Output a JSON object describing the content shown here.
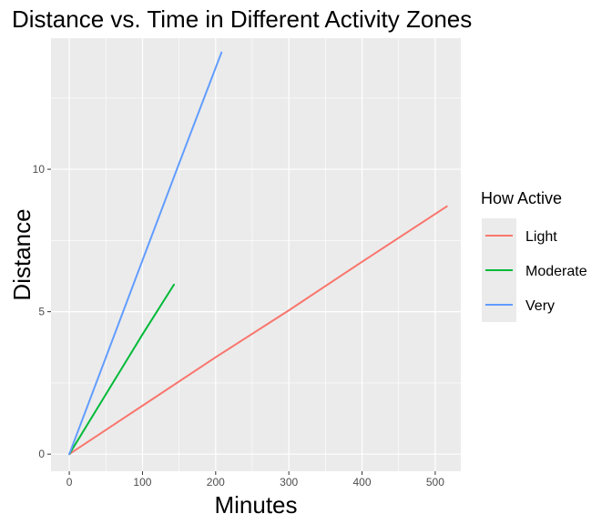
{
  "chart_data": {
    "type": "line",
    "title": "Distance vs. Time in Different Activity Zones",
    "xlabel": "Minutes",
    "ylabel": "Distance",
    "xlim": [
      -25,
      535
    ],
    "ylim": [
      -0.6,
      14.6
    ],
    "x_ticks": [
      0,
      100,
      200,
      300,
      400,
      500
    ],
    "y_ticks": [
      0,
      5,
      10
    ],
    "grid": true,
    "legend": {
      "title": "How Active",
      "position": "right"
    },
    "series": [
      {
        "name": "Light",
        "color": "#F8766D",
        "x": [
          0,
          100,
          200,
          300,
          400,
          516
        ],
        "y": [
          0,
          1.7,
          3.4,
          5.05,
          6.75,
          8.7
        ]
      },
      {
        "name": "Moderate",
        "color": "#00BA38",
        "x": [
          0,
          50,
          100,
          143
        ],
        "y": [
          0,
          2.1,
          4.2,
          5.95
        ]
      },
      {
        "name": "Very",
        "color": "#619CFF",
        "x": [
          0,
          50,
          100,
          150,
          208
        ],
        "y": [
          0,
          3.4,
          6.8,
          10.2,
          14.1
        ]
      }
    ]
  }
}
